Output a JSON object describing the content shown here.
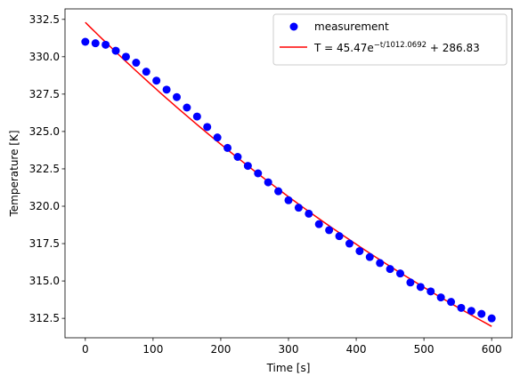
{
  "chart_data": {
    "type": "scatter",
    "xlabel": "Time [s]",
    "ylabel": "Temperature [K]",
    "xlim": [
      -30,
      630
    ],
    "ylim": [
      311.2,
      333.2
    ],
    "xticks": [
      0,
      100,
      200,
      300,
      400,
      500,
      600
    ],
    "xtick_labels": [
      "0",
      "100",
      "200",
      "300",
      "400",
      "500",
      "600"
    ],
    "yticks": [
      312.5,
      315.0,
      317.5,
      320.0,
      322.5,
      325.0,
      327.5,
      330.0,
      332.5
    ],
    "ytick_labels": [
      "312.5",
      "315.0",
      "317.5",
      "320.0",
      "322.5",
      "325.0",
      "327.5",
      "330.0",
      "332.5"
    ],
    "grid": false,
    "legend_position": "top-right",
    "series": [
      {
        "name": "measurement",
        "kind": "scatter",
        "color": "#0000ff",
        "x": [
          0,
          15,
          30,
          45,
          60,
          75,
          90,
          105,
          120,
          135,
          150,
          165,
          180,
          195,
          210,
          225,
          240,
          255,
          270,
          285,
          300,
          315,
          330,
          345,
          360,
          375,
          390,
          405,
          420,
          435,
          450,
          465,
          480,
          495,
          510,
          525,
          540,
          555,
          570,
          585,
          600
        ],
        "y": [
          331.0,
          330.9,
          330.8,
          330.4,
          330.0,
          329.6,
          329.0,
          328.4,
          327.8,
          327.3,
          326.6,
          326.0,
          325.3,
          324.6,
          323.9,
          323.3,
          322.7,
          322.2,
          321.6,
          321.0,
          320.4,
          319.9,
          319.5,
          318.8,
          318.4,
          318.0,
          317.5,
          317.0,
          316.6,
          316.2,
          315.8,
          315.5,
          314.9,
          314.6,
          314.3,
          313.9,
          313.6,
          313.2,
          313.0,
          312.8,
          312.5
        ]
      },
      {
        "name": "T = 45.47e^{−t/1012.0692} + 286.83",
        "kind": "line",
        "color": "#ff0000",
        "model": {
          "A": 45.47,
          "tau": 1012.0692,
          "C": 286.83
        },
        "x_range": [
          0,
          600
        ]
      }
    ]
  },
  "legend": {
    "measurement_label": "measurement",
    "fit_label_prefix": "T = 45.47e",
    "fit_label_exponent": "−t/1012.0692",
    "fit_label_suffix": " + 286.83"
  }
}
